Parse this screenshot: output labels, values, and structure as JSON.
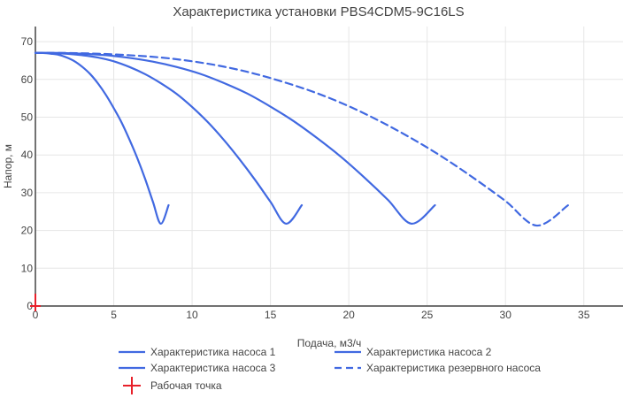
{
  "chart_data": {
    "type": "line",
    "title": "Характеристика установки PBS4CDM5-9C16LS",
    "xlabel": "Подача, м3/ч",
    "ylabel": "Напор, м",
    "xlim": [
      0,
      37.5
    ],
    "ylim": [
      0,
      74
    ],
    "xticks": [
      0,
      5,
      10,
      15,
      20,
      25,
      30,
      35
    ],
    "yticks": [
      0,
      10,
      20,
      30,
      40,
      50,
      60,
      70
    ],
    "grid": true,
    "legend_position": "bottom",
    "series": [
      {
        "name": "Характеристика насоса 1",
        "color": "#4169e1",
        "dash": "solid",
        "x": [
          0,
          0.5,
          1,
          1.5,
          2,
          2.5,
          3,
          3.5,
          4,
          4.5,
          5,
          5.5,
          6,
          6.5,
          7,
          7.5,
          8,
          8.5
        ],
        "y": [
          67,
          67,
          66.8,
          66.5,
          65.8,
          64.8,
          63.3,
          61.4,
          58.9,
          55.9,
          52.4,
          48.6,
          44.1,
          39.2,
          33.7,
          27.6,
          21.8,
          26.7
        ]
      },
      {
        "name": "Характеристика насоса 2",
        "color": "#4169e1",
        "dash": "solid",
        "x": [
          0,
          1,
          2,
          3,
          4,
          5,
          6,
          7,
          8,
          9,
          10,
          11,
          12,
          13,
          14,
          15,
          16,
          17
        ],
        "y": [
          67,
          67,
          66.8,
          66.4,
          65.8,
          64.8,
          63.3,
          61.4,
          59,
          56.2,
          52.7,
          48.7,
          44.1,
          39,
          33.5,
          27.6,
          21.8,
          26.7
        ]
      },
      {
        "name": "Характеристика насоса 3",
        "color": "#4169e1",
        "dash": "solid",
        "x": [
          0,
          1.5,
          3,
          4.5,
          6,
          7.5,
          9,
          10.5,
          12,
          13.5,
          15,
          16.5,
          18,
          19.5,
          21,
          22.5,
          24,
          25.5
        ],
        "y": [
          67,
          67,
          66.8,
          66.4,
          65.7,
          64.7,
          63.3,
          61.5,
          59.1,
          56.3,
          52.8,
          48.9,
          44.4,
          39.5,
          34,
          28.1,
          21.8,
          26.7
        ]
      },
      {
        "name": "Характеристика резервного насоса",
        "color": "#4169e1",
        "dash": "dash",
        "x": [
          0,
          2,
          4,
          6,
          8,
          10,
          12,
          14,
          16,
          18,
          20,
          22,
          24,
          26,
          28,
          30,
          32,
          34
        ],
        "y": [
          67,
          67,
          66.8,
          66.4,
          65.8,
          64.8,
          63.4,
          61.5,
          59.1,
          56.3,
          52.9,
          48.9,
          44.4,
          39.4,
          33.8,
          27.8,
          21.3,
          26.7
        ]
      }
    ],
    "operating_point": {
      "name": "Рабочая точка",
      "color": "#e8202a",
      "x": 0,
      "y": 0
    }
  }
}
